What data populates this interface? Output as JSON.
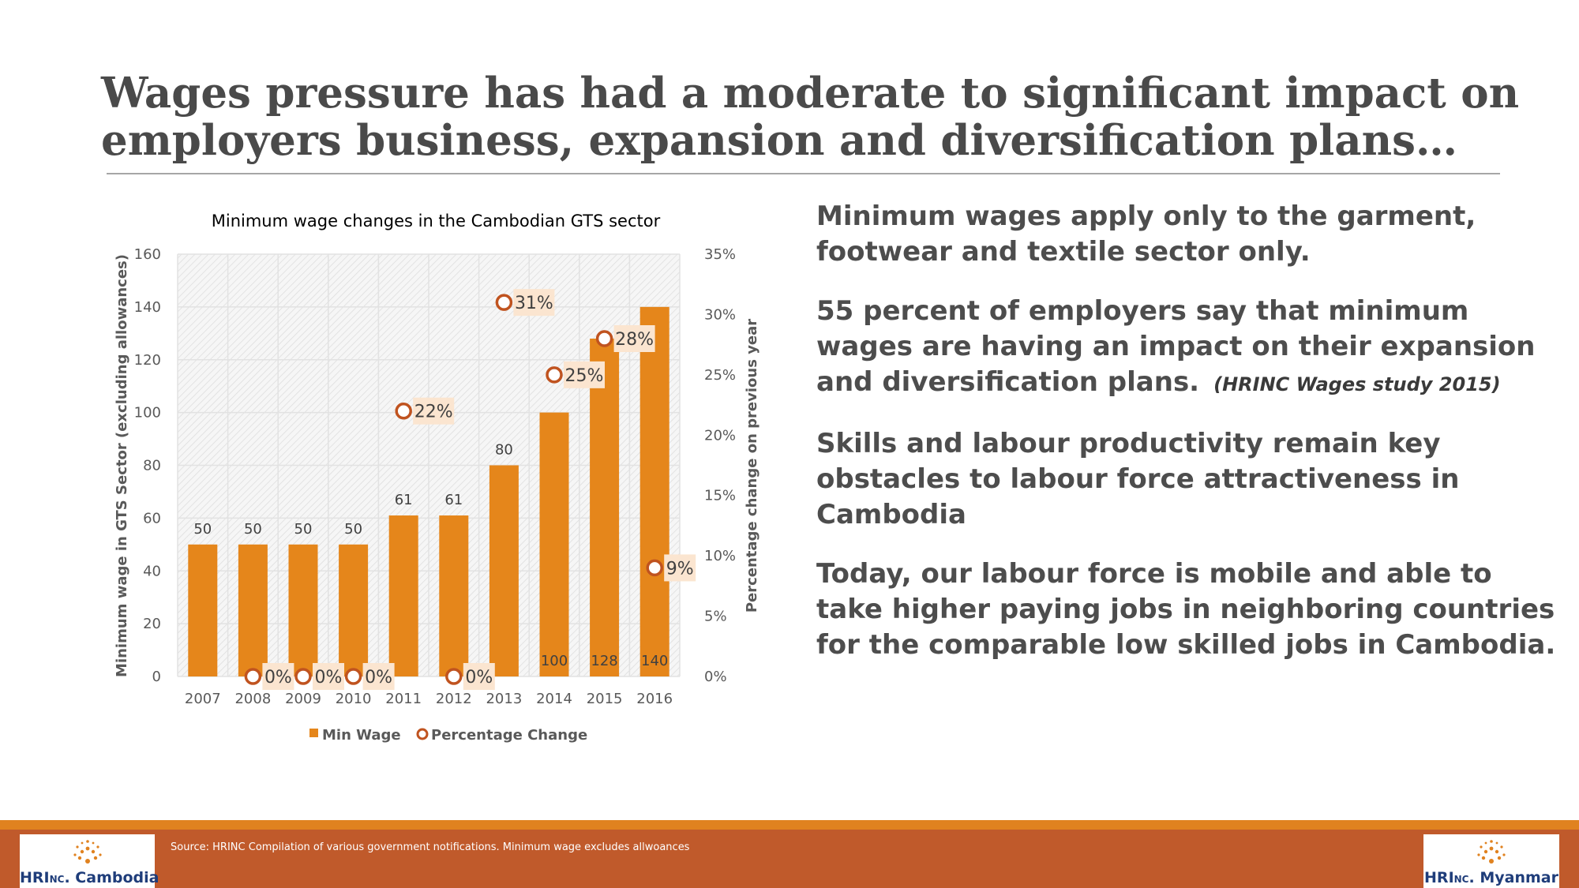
{
  "slide": {
    "title_line1": "Wages pressure has had a moderate to significant impact on",
    "title_line2": "employers business, expansion and diversification plans…"
  },
  "bullets": [
    {
      "text": "Minimum wages apply only to the garment, footwear and textile sector only.",
      "cite": ""
    },
    {
      "text": "55 percent of employers say that minimum wages are having an impact on their expansion and diversification plans.",
      "cite": "(HRINC Wages study 2015)"
    },
    {
      "text": "Skills and labour productivity remain key obstacles to labour force attractiveness in Cambodia",
      "cite": ""
    },
    {
      "text": "Today, our labour force is mobile and able to take higher paying jobs in neighboring countries for the comparable low skilled jobs in Cambodia.",
      "cite": ""
    }
  ],
  "chart_data": {
    "type": "bar",
    "title": "Minimum wage changes in the Cambodian GTS sector",
    "categories": [
      "2007",
      "2008",
      "2009",
      "2010",
      "2011",
      "2012",
      "2013",
      "2014",
      "2015",
      "2016"
    ],
    "series": [
      {
        "name": "Min Wage",
        "kind": "bar",
        "axis": "left",
        "values": [
          50,
          50,
          50,
          50,
          61,
          61,
          80,
          100,
          128,
          140
        ],
        "labels": [
          "50",
          "50",
          "50",
          "50",
          "61",
          "61",
          "80",
          "100",
          "128",
          "140"
        ]
      },
      {
        "name": "Percentage Change",
        "kind": "scatter",
        "axis": "right",
        "values": [
          null,
          0,
          0,
          0,
          22,
          0,
          31,
          25,
          28,
          9
        ],
        "labels": [
          "",
          "0%",
          "0%",
          "0%",
          "22%",
          "0%",
          "31%",
          "25%",
          "28%",
          "9%"
        ]
      }
    ],
    "ylabel": "Minimum wage in GTS Sector (excluding allowances)",
    "y2label": "Percentage change on previous year",
    "ylim": [
      0,
      160
    ],
    "y2lim": [
      0,
      35
    ],
    "yticks": [
      "0",
      "20",
      "40",
      "60",
      "80",
      "100",
      "120",
      "140",
      "160"
    ],
    "y2ticks": [
      "0%",
      "5%",
      "10%",
      "15%",
      "20%",
      "25%",
      "30%",
      "35%"
    ],
    "legend_position": "bottom",
    "colors": {
      "bar": "#e5861b",
      "marker": "#c0531f",
      "label_bg": "#fbe5d0"
    }
  },
  "footer": {
    "source": "Source:  HRINC Compilation of various government notifications.  Minimum wage excludes allwoances",
    "logo_left_main": "HRI",
    "logo_left_small": "NC",
    "logo_left_suffix": ". Cambodia",
    "logo_right_main": "HRI",
    "logo_right_small": "NC",
    "logo_right_suffix": ". Myanmar",
    "colors": {
      "stripe": "#e0821f",
      "band": "#c05a2b"
    }
  }
}
